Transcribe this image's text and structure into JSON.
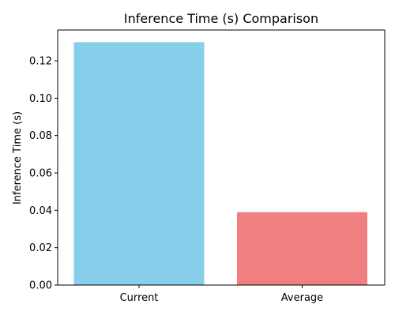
{
  "chart_data": {
    "type": "bar",
    "title": "Inference Time (s) Comparison",
    "xlabel": "",
    "ylabel": "Inference Time (s)",
    "categories": [
      "Current",
      "Average"
    ],
    "values": [
      0.13,
      0.039
    ],
    "colors": [
      "#87CEEB",
      "#F08080"
    ],
    "ylim": [
      0,
      0.1365
    ],
    "yticks": [
      0.0,
      0.02,
      0.04,
      0.06,
      0.08,
      0.1,
      0.12
    ],
    "ytick_labels": [
      "0.00",
      "0.02",
      "0.04",
      "0.06",
      "0.08",
      "0.10",
      "0.12"
    ],
    "grid": false,
    "legend": "none"
  }
}
